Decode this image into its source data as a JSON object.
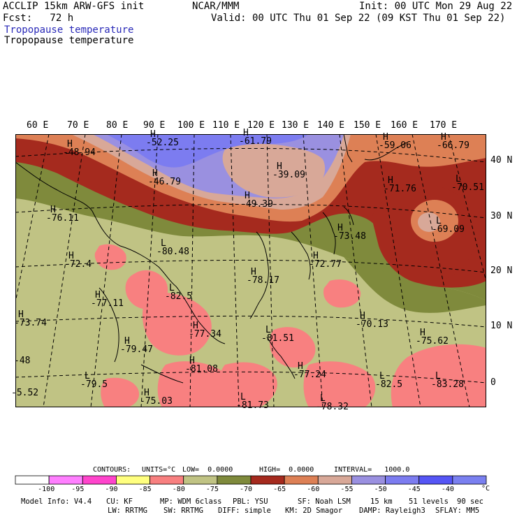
{
  "header": {
    "line1_left": "ACCLIP 15km ARW-GFS init",
    "line1_center": "NCAR/MMM",
    "line1_right": "Init: 00 UTC Mon 29 Aug 22",
    "line2_left": "Fcst:   72 h",
    "line2_right": "Valid: 00 UTC Thu 01 Sep 22 (09 KST Thu 01 Sep 22)",
    "field_title_1": "Tropopause temperature",
    "field_title_2": "Tropopause temperature"
  },
  "map": {
    "lon_labels": [
      "60 E",
      "70 E",
      "80 E",
      "90 E",
      "100 E",
      "110 E",
      "120 E",
      "130 E",
      "140 E",
      "150 E",
      "160 E",
      "170 E"
    ],
    "lat_labels": [
      "40 N",
      "30 N",
      "20 N",
      "10 N",
      "0"
    ],
    "colors": {
      "lt_neg100": "#ffffff",
      "n100_95": "#ff7fff",
      "n95_90": "#ff44cc",
      "n90_85": "#ffff7f",
      "n85_80": "#f88080",
      "n80_75": "#c0c384",
      "n75_70": "#7f8a3c",
      "n70_65": "#a52a1e",
      "n65_60": "#dd8055",
      "n60_55": "#d8a898",
      "n55_50": "#9a90e0",
      "n50_45": "#7c7cf0",
      "n45_40": "#5555f5",
      "gt_neg40": "#7a80f0"
    },
    "centers": [
      {
        "type": "H",
        "value": "-48.94"
      },
      {
        "type": "H",
        "value": "-52.25"
      },
      {
        "type": "H",
        "value": "-61.79"
      },
      {
        "type": "H",
        "value": "-39.09"
      },
      {
        "type": "H",
        "value": "-46.79"
      },
      {
        "type": "H",
        "value": "-49.39"
      },
      {
        "type": "H",
        "value": "-59.06"
      },
      {
        "type": "H",
        "value": "-66.79"
      },
      {
        "type": "H",
        "value": "-71.76"
      },
      {
        "type": "L",
        "value": "-70.51"
      },
      {
        "type": "L",
        "value": "-69.09"
      },
      {
        "type": "H",
        "value": "-73.48"
      },
      {
        "type": "H",
        "value": "-76.11"
      },
      {
        "type": "L",
        "value": "-80.48"
      },
      {
        "type": "H",
        "value": "-72.4"
      },
      {
        "type": "L",
        "value": "-82.5"
      },
      {
        "type": "H",
        "value": "-72.77"
      },
      {
        "type": "H",
        "value": "-78.17"
      },
      {
        "type": "H",
        "value": "-77.11"
      },
      {
        "type": "H",
        "value": "-73.74"
      },
      {
        "type": "H",
        "value": "-70.13"
      },
      {
        "type": "H",
        "value": "-77.34"
      },
      {
        "type": "L",
        "value": "-81.51"
      },
      {
        "type": "H",
        "value": "-75.62"
      },
      {
        "type": "H",
        "value": "-79.47"
      },
      {
        "type": "H",
        "value": "-81.08"
      },
      {
        "type": "H",
        "value": "-77.24"
      },
      {
        "type": "L",
        "value": "-79.5"
      },
      {
        "type": "L",
        "value": "-82.5"
      },
      {
        "type": "L",
        "value": "-83.28"
      },
      {
        "type": "H",
        "value": "-75.03"
      },
      {
        "type": "L",
        "value": "-81.73"
      },
      {
        "type": "L",
        "value": "-78.32"
      },
      {
        "type": "",
        "value": "-48"
      },
      {
        "type": "",
        "value": "-5.52"
      }
    ]
  },
  "contours_line": {
    "contours": "CONTOURS:",
    "units": "UNITS=°C",
    "low": "LOW=  0.0000",
    "high": "HIGH=  0.0000",
    "interval": "INTERVAL=   1000.0"
  },
  "colorbar": {
    "labels": [
      "-100",
      "-95",
      "-90",
      "-85",
      "-80",
      "-75",
      "-70",
      "-65",
      "-60",
      "-55",
      "-50",
      "-45",
      "-40"
    ],
    "unit": "°C"
  },
  "footer": {
    "line1": [
      "Model Info: V4.4",
      "CU: KF",
      "MP: WDM 6class",
      "PBL: YSU",
      "SF: Noah LSM",
      "15 km",
      "51 levels",
      "90 sec"
    ],
    "line2": [
      "LW: RRTMG",
      "SW: RRTMG",
      "DIFF: simple",
      "KM: 2D Smagor",
      "DAMP: Rayleigh3",
      "SFLAY: MM5"
    ]
  }
}
